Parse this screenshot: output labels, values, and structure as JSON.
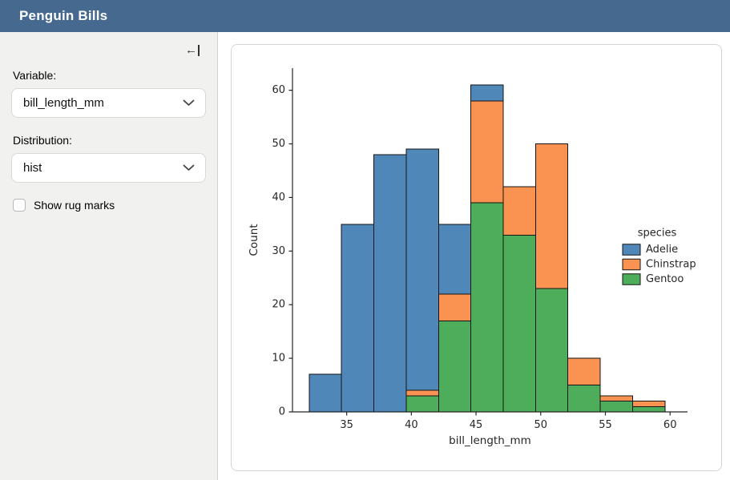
{
  "header": {
    "title": "Penguin Bills"
  },
  "icons": {
    "collapse_sidebar": "←",
    "chevron_down": "⌄"
  },
  "colors": {
    "navbar_bg": "#46698f",
    "sidebar_bg": "#f1f1ef",
    "adelie_blue": "#4e87b8",
    "chinstrap_orange": "#fa9351",
    "gentoo_green": "#4ead5a"
  },
  "sidebar": {
    "variable_label": "Variable:",
    "variable_value": "bill_length_mm",
    "distribution_label": "Distribution:",
    "distribution_value": "hist",
    "rug_checkbox_label": "Show rug marks",
    "rug_checked": false
  },
  "chart_data": {
    "type": "bar",
    "subtype": "stacked_histogram",
    "title": "",
    "xlabel": "bill_length_mm",
    "ylabel": "Count",
    "legend_title": "species",
    "legend_position": "right",
    "grid": false,
    "bins": {
      "starts": [
        32.1,
        34.6,
        37.1,
        39.6,
        42.1,
        44.6,
        47.1,
        49.6,
        52.1,
        54.6,
        57.1
      ],
      "width": 2.5
    },
    "series": [
      {
        "name": "Adelie",
        "color": "#4e87b8",
        "values": [
          7,
          35,
          48,
          45,
          13,
          3,
          0,
          0,
          0,
          0,
          0
        ]
      },
      {
        "name": "Chinstrap",
        "color": "#fa9351",
        "values": [
          0,
          0,
          0,
          1,
          5,
          19,
          9,
          27,
          5,
          1,
          1
        ]
      },
      {
        "name": "Gentoo",
        "color": "#4ead5a",
        "values": [
          0,
          0,
          0,
          3,
          17,
          39,
          33,
          23,
          5,
          2,
          1
        ]
      }
    ],
    "bin_totals": [
      7,
      35,
      48,
      49,
      35,
      61,
      42,
      50,
      10,
      3,
      2
    ],
    "stack_order_bottom_to_top": [
      "Gentoo",
      "Chinstrap",
      "Adelie"
    ],
    "x_ticks": [
      35,
      40,
      45,
      50,
      55,
      60
    ],
    "y_ticks": [
      0,
      10,
      20,
      30,
      40,
      50,
      60
    ],
    "xlim": [
      30.81,
      61.35
    ],
    "ylim": [
      0,
      64.13
    ],
    "edge_color": "#141414"
  }
}
